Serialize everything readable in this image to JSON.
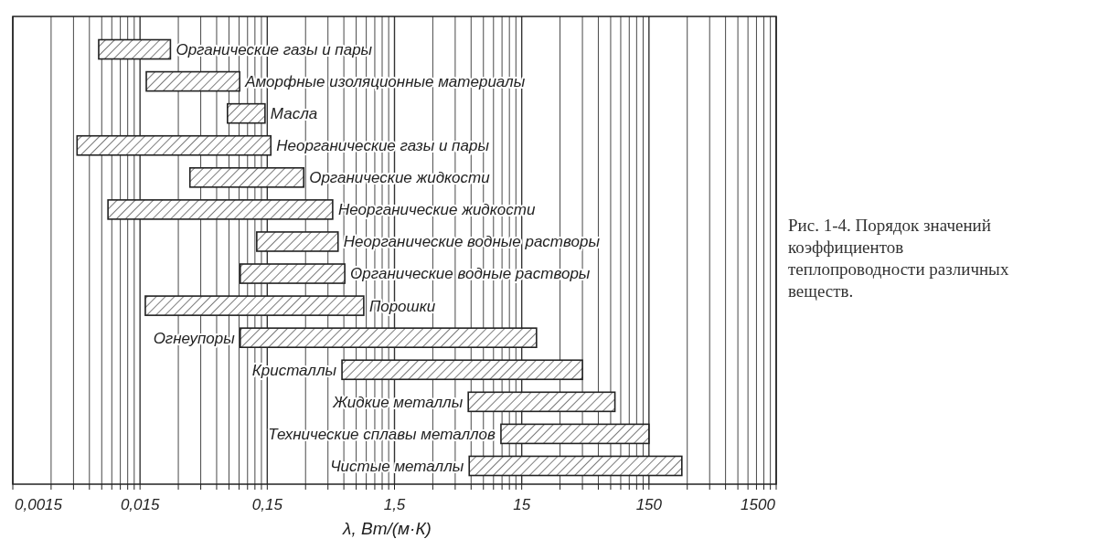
{
  "chart_data": {
    "type": "bar",
    "orientation": "horizontal",
    "log": "x",
    "grid": "x",
    "color": "#222222",
    "categories": [
      "Органические газы и пары",
      "Аморфные изоляционные материалы",
      "Масла",
      "Неорганические газы и пары",
      "Органические жидкости",
      "Неорганические жидкости",
      "Неорганические водные растворы",
      "Органические водные растворы",
      "Порошки",
      "Огнеупоры",
      "Кристаллы",
      "Жидкие металлы",
      "Технические сплавы металлов",
      "Чистые металлы"
    ],
    "base": [
      0.0071,
      0.0168,
      0.073,
      0.0048,
      0.037,
      0.0084,
      0.124,
      0.092,
      0.0165,
      0.092,
      0.58,
      5.7,
      10.3,
      5.8
    ],
    "values": [
      0.0189,
      0.0742,
      0.071,
      0.1552,
      0.253,
      0.4816,
      0.416,
      0.518,
      0.8435,
      19.508,
      44.42,
      75.3,
      139.7,
      266.2
    ],
    "xlim": [
      0.0015,
      1500
    ],
    "xticks": [
      {
        "value": 0.0015,
        "label": "0,0015"
      },
      {
        "value": 0.003,
        "label": null
      },
      {
        "value": 0.0045,
        "label": null
      },
      {
        "value": 0.006,
        "label": null
      },
      {
        "value": 0.0075,
        "label": null
      },
      {
        "value": 0.009,
        "label": null
      },
      {
        "value": 0.0105,
        "label": null
      },
      {
        "value": 0.012,
        "label": null
      },
      {
        "value": 0.0135,
        "label": null
      },
      {
        "value": 0.015,
        "label": "0,015"
      },
      {
        "value": 0.03,
        "label": null
      },
      {
        "value": 0.045,
        "label": null
      },
      {
        "value": 0.06,
        "label": null
      },
      {
        "value": 0.075,
        "label": null
      },
      {
        "value": 0.09,
        "label": null
      },
      {
        "value": 0.105,
        "label": null
      },
      {
        "value": 0.12,
        "label": null
      },
      {
        "value": 0.135,
        "label": null
      },
      {
        "value": 0.15,
        "label": "0,15"
      },
      {
        "value": 0.3,
        "label": null
      },
      {
        "value": 0.45,
        "label": null
      },
      {
        "value": 0.6,
        "label": null
      },
      {
        "value": 0.75,
        "label": null
      },
      {
        "value": 0.9,
        "label": null
      },
      {
        "value": 1.05,
        "label": null
      },
      {
        "value": 1.2,
        "label": null
      },
      {
        "value": 1.35,
        "label": null
      },
      {
        "value": 1.5,
        "label": "1,5"
      },
      {
        "value": 3,
        "label": null
      },
      {
        "value": 4.5,
        "label": null
      },
      {
        "value": 6,
        "label": null
      },
      {
        "value": 7.5,
        "label": null
      },
      {
        "value": 9,
        "label": null
      },
      {
        "value": 10.5,
        "label": null
      },
      {
        "value": 12,
        "label": null
      },
      {
        "value": 13.5,
        "label": null
      },
      15,
      {
        "value": 30,
        "label": null
      },
      {
        "value": 45,
        "label": null
      },
      {
        "value": 60,
        "label": null
      },
      {
        "value": 75,
        "label": null
      },
      {
        "value": 90,
        "label": null
      },
      {
        "value": 105,
        "label": null
      },
      {
        "value": 120,
        "label": null
      },
      {
        "value": 135,
        "label": null
      },
      150,
      {
        "value": 300,
        "label": null
      },
      {
        "value": 450,
        "label": null
      },
      {
        "value": 600,
        "label": null
      },
      {
        "value": 750,
        "label": null
      },
      {
        "value": 900,
        "label": null
      },
      {
        "value": 1050,
        "label": null
      },
      {
        "value": 1200,
        "label": null
      },
      {
        "value": 1350,
        "label": null
      },
      1500
    ],
    "xlabel": "λ, Вт/(м·К)",
    "annotations": [
      "Рис. 1-4. Порядок значений коэффициентов теплопроводности различных веществ."
    ]
  }
}
